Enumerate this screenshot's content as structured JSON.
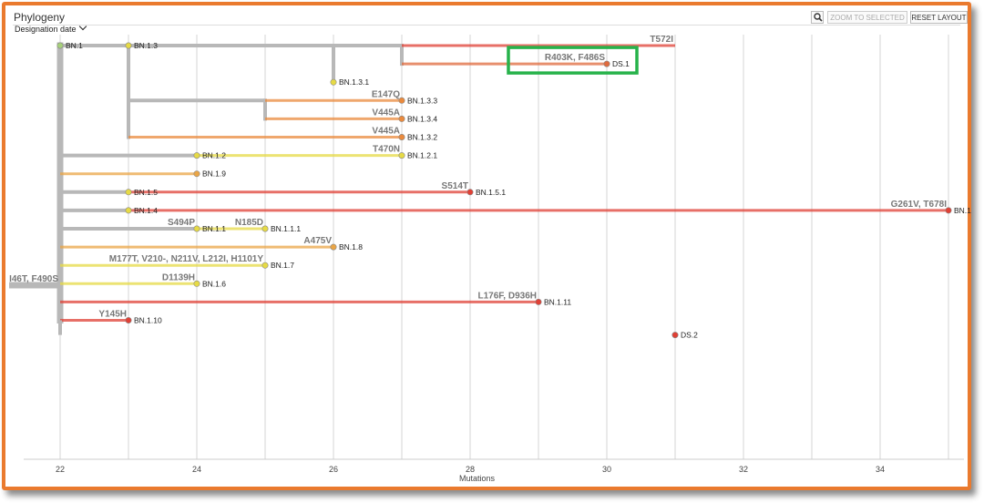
{
  "panel": {
    "title": "Phylogeny",
    "dropdown_label": "Designation date",
    "zoom_icon": "magnifier-icon",
    "zoom_to_selected_label": "ZOOM TO SELECTED",
    "reset_layout_label": "RESET LAYOUT"
  },
  "colors": {
    "frame": "#ea7a2e",
    "highlight": "#27b24a",
    "backbone": "#b8b8b8"
  },
  "chart_data": {
    "type": "tree",
    "xlabel": "Mutations",
    "xlim": [
      21.3,
      35.3
    ],
    "x_ticks": [
      22,
      24,
      26,
      28,
      30,
      32,
      34
    ],
    "tree": {
      "name": "BN.1",
      "x": 22,
      "label": "I46T, F490S",
      "color": "#a6d07a",
      "children": [
        {
          "name": "BN.1.3",
          "x": 23,
          "color": "#e6da45",
          "children": [
            {
              "name": "",
              "x": 26,
              "color": "#c0c0c0",
              "children": [
                {
                  "name": "",
                  "x": 27,
                  "color": "#c0c0c0",
                  "children": [
                    {
                      "name": "DS.2",
                      "x": 31,
                      "label": "T572I",
                      "color": "#e04035",
                      "children": []
                    },
                    {
                      "name": "DS.1",
                      "x": 30,
                      "label": "R403K, F486S",
                      "color": "#e06a3d",
                      "children": []
                    }
                  ]
                },
                {
                  "name": "BN.1.3.1",
                  "x": 26,
                  "color": "#e6da45",
                  "children": []
                }
              ]
            },
            {
              "name": "",
              "x": 25,
              "color": "#c0c0c0",
              "children": [
                {
                  "name": "BN.1.3.3",
                  "x": 27,
                  "label": "E147Q",
                  "color": "#ea8a3d",
                  "children": []
                },
                {
                  "name": "BN.1.3.4",
                  "x": 27,
                  "label": "V445A",
                  "color": "#ea8a3d",
                  "children": []
                }
              ]
            },
            {
              "name": "BN.1.3.2",
              "x": 27,
              "label": "V445A",
              "color": "#ea8a3d",
              "children": []
            }
          ]
        },
        {
          "name": "BN.1.2",
          "x": 24,
          "color": "#e6da45",
          "children": [
            {
              "name": "BN.1.2.1",
              "x": 27,
              "label": "T470N",
              "color": "#e6da45",
              "children": []
            }
          ]
        },
        {
          "name": "BN.1.9",
          "x": 24,
          "color": "#eaa545",
          "children": []
        },
        {
          "name": "BN.1.5",
          "x": 23,
          "color": "#e6da45",
          "children": [
            {
              "name": "BN.1.5.1",
              "x": 28,
              "label": "S514T",
              "color": "#e04035",
              "children": []
            }
          ]
        },
        {
          "name": "BN.1.4",
          "x": 23,
          "color": "#e6da45",
          "children": [
            {
              "name": "BN.1",
              "x": 35,
              "label": "G261V, T678I",
              "color": "#e04035",
              "children": []
            }
          ]
        },
        {
          "name": "BN.1.1",
          "x": 24,
          "label": "S494P",
          "color": "#e6da45",
          "children": [
            {
              "name": "BN.1.1.1",
              "x": 25,
              "label": "N185D",
              "color": "#e6da45",
              "children": []
            }
          ]
        },
        {
          "name": "BN.1.8",
          "x": 26,
          "label": "A475V",
          "color": "#eaa545",
          "children": []
        },
        {
          "name": "BN.1.7",
          "x": 25,
          "label": "M177T, V210-, N211V, L212I, H1101Y",
          "color": "#e6da45",
          "children": []
        },
        {
          "name": "BN.1.6",
          "x": 24,
          "label": "D1139H",
          "color": "#e6da45",
          "children": []
        },
        {
          "name": "BN.1.11",
          "x": 29,
          "label": "L176F, D936H",
          "color": "#e04035",
          "children": []
        },
        {
          "name": "BN.1.10",
          "x": 23,
          "label": "Y145H",
          "color": "#e04035",
          "children": []
        }
      ]
    },
    "selected": "DS.1"
  }
}
